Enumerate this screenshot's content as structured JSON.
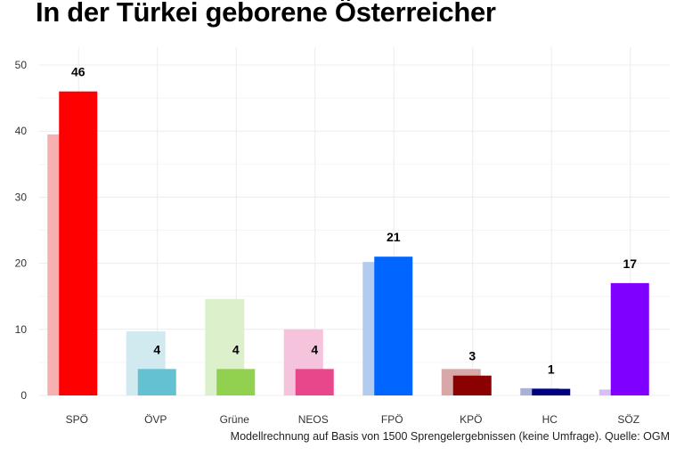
{
  "title": "In der Türkei geborene Österreicher",
  "caption": "Modellrechnung auf Basis von 1500 Sprengelergebnissen (keine Umfrage). Quelle: OGM",
  "chart_data": {
    "type": "bar",
    "title": "In der Türkei geborene Österreicher",
    "xlabel": "",
    "ylabel": "",
    "ylim": [
      0,
      50
    ],
    "yticks": [
      0,
      10,
      20,
      30,
      40,
      50
    ],
    "grid": true,
    "categories": [
      "SPÖ",
      "ÖVP",
      "Grüne",
      "NEOS",
      "FPÖ",
      "KPÖ",
      "HC",
      "SÖZ"
    ],
    "series": [
      {
        "values": [
          39.5,
          9.7,
          14.6,
          10,
          20.2,
          4,
          1.1,
          0.9
        ],
        "colors": [
          "#f7b0b0",
          "#d0eaf0",
          "#ddf0cc",
          "#f6c3dc",
          "#b4cbf0",
          "#d8a8a8",
          "#aab0d8",
          "#d8bff6"
        ]
      },
      {
        "values": [
          46,
          4,
          4,
          4,
          21,
          3,
          1,
          17
        ],
        "labels": [
          "46",
          "4",
          "4",
          "4",
          "21",
          "3",
          "1",
          "17"
        ],
        "colors": [
          "#ff0000",
          "#63c1d2",
          "#92d050",
          "#e9478b",
          "#0066ff",
          "#8b0000",
          "#000080",
          "#8000ff"
        ]
      }
    ]
  }
}
